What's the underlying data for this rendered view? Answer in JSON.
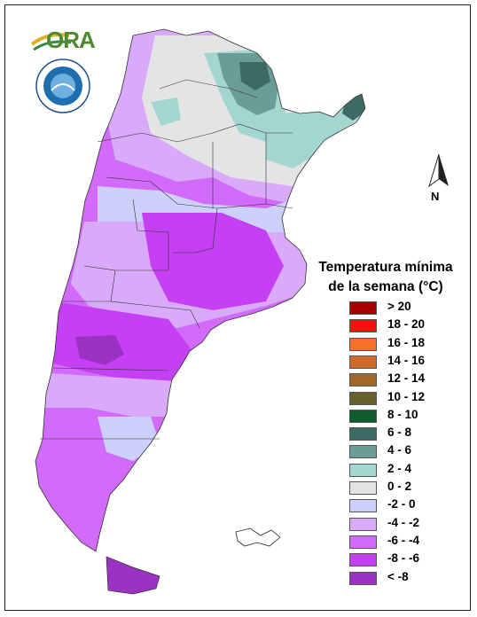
{
  "logo": {
    "text": "ORA",
    "seal_text": "SERVICIO METEOROLOGICO NACIONAL ARGENTINA"
  },
  "north_arrow": {
    "label": "N"
  },
  "legend": {
    "title_line1": "Temperatura mínima",
    "title_line2": "de la semana (°C)",
    "items": [
      {
        "label": "> 20",
        "color": "#a50000"
      },
      {
        "label": "18 - 20",
        "color": "#fb0f0f"
      },
      {
        "label": "16 - 18",
        "color": "#fb6e2c"
      },
      {
        "label": "14 - 16",
        "color": "#cf6a2d"
      },
      {
        "label": "12 - 14",
        "color": "#a2672d"
      },
      {
        "label": "10 - 12",
        "color": "#66612c"
      },
      {
        "label": "8 - 10",
        "color": "#0f5b2c"
      },
      {
        "label": "6 - 8",
        "color": "#3c6b63"
      },
      {
        "label": "4 - 6",
        "color": "#6a9d98"
      },
      {
        "label": "2 - 4",
        "color": "#a3d6d0"
      },
      {
        "label": "0 - 2",
        "color": "#e4e4e4"
      },
      {
        "label": "-2 - 0",
        "color": "#cdd0fb"
      },
      {
        "label": "-4 - -2",
        "color": "#daaafa"
      },
      {
        "label": "-6 - -4",
        "color": "#d26bfb"
      },
      {
        "label": "-8 - -6",
        "color": "#c53ff3"
      },
      {
        "label": "< -8",
        "color": "#9b32c4"
      }
    ]
  }
}
